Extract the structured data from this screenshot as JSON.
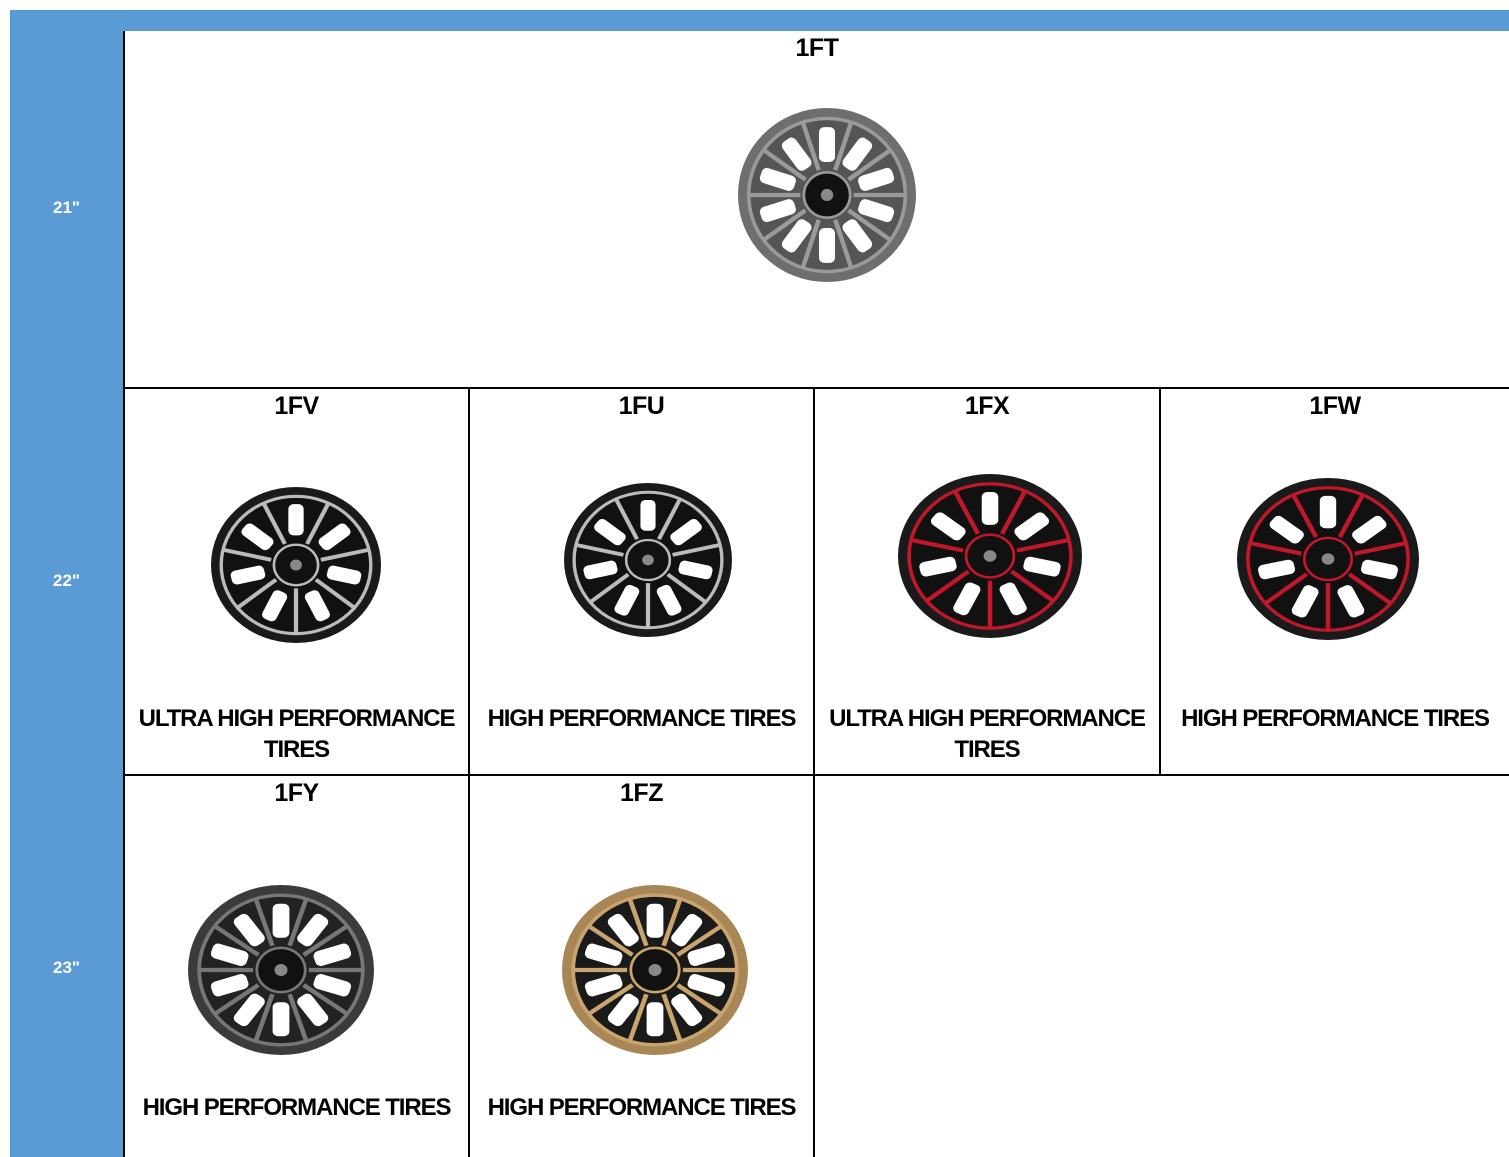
{
  "rows": [
    {
      "size": "21\"",
      "cells": [
        {
          "code": "1FT"
        }
      ]
    },
    {
      "size": "22\"",
      "cells": [
        {
          "code": "1FV",
          "tires": "ULTRA HIGH PERFORMANCE TIRES"
        },
        {
          "code": "1FU",
          "tires": "HIGH PERFORMANCE TIRES"
        },
        {
          "code": "1FX",
          "tires": "ULTRA HIGH PERFORMANCE TIRES"
        },
        {
          "code": "1FW",
          "tires": "HIGH PERFORMANCE TIRES"
        }
      ]
    },
    {
      "size": "23\"",
      "cells": [
        {
          "code": "1FY",
          "tires": "HIGH PERFORMANCE TIRES"
        },
        {
          "code": "1FZ",
          "tires": "HIGH PERFORMANCE TIRES"
        }
      ]
    }
  ]
}
